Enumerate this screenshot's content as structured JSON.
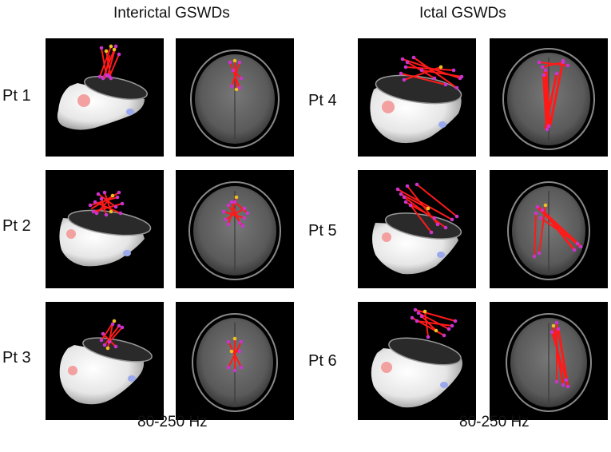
{
  "columns": {
    "left_title": "Interictal GSWDs",
    "right_title": "Ictal GSWDs",
    "left_band": "80-250 Hz",
    "right_band": "80-250 Hz"
  },
  "patients": [
    {
      "id": "pt1",
      "label": "Pt 1",
      "group": "interictal"
    },
    {
      "id": "pt2",
      "label": "Pt 2",
      "group": "interictal"
    },
    {
      "id": "pt3",
      "label": "Pt 3",
      "group": "interictal"
    },
    {
      "id": "pt4",
      "label": "Pt 4",
      "group": "ictal"
    },
    {
      "id": "pt5",
      "label": "Pt 5",
      "group": "ictal"
    },
    {
      "id": "pt6",
      "label": "Pt 6",
      "group": "ictal"
    }
  ],
  "colors": {
    "panel_background": "#000000",
    "network_line": "#ff1a1a",
    "node_primary": "#cc33cc",
    "node_secondary": "#f0c020",
    "head_surface": "#e6e6e6",
    "brain_slice": "#5a5a5a",
    "ear_marker": "#f3a0a0",
    "fiducial_marker": "#9aa8ee"
  },
  "panel_views": [
    "3d-head-rendering",
    "axial-mri-slice"
  ]
}
